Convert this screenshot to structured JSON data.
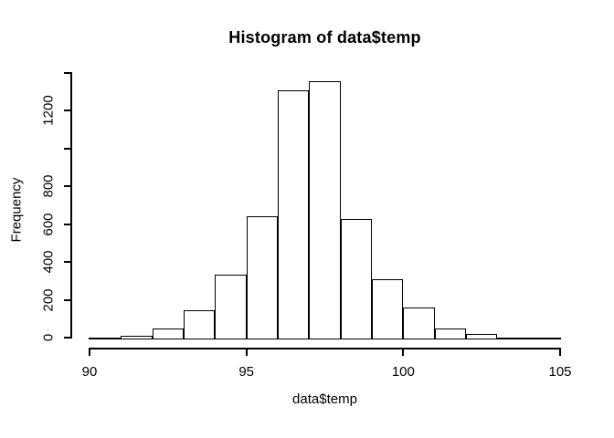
{
  "chart_data": {
    "type": "histogram",
    "title": "Histogram of data$temp",
    "xlabel": "data$temp",
    "ylabel": "Frequency",
    "xlim": [
      90,
      105
    ],
    "ylim": [
      0,
      1400
    ],
    "grid": false,
    "x_ticks": [
      {
        "v": 90,
        "label": "90"
      },
      {
        "v": 95,
        "label": "95"
      },
      {
        "v": 100,
        "label": "100"
      },
      {
        "v": 105,
        "label": "105"
      }
    ],
    "y_ticks": [
      {
        "v": 0,
        "label": "0"
      },
      {
        "v": 200,
        "label": "200"
      },
      {
        "v": 400,
        "label": "400"
      },
      {
        "v": 600,
        "label": "600"
      },
      {
        "v": 800,
        "label": "800"
      },
      {
        "v": 1000,
        "label": ""
      },
      {
        "v": 1200,
        "label": "1200"
      },
      {
        "v": 1400,
        "label": ""
      }
    ],
    "bin_width": 1,
    "bins": [
      {
        "from": 90,
        "to": 91,
        "count": 0
      },
      {
        "from": 91,
        "to": 92,
        "count": 10
      },
      {
        "from": 92,
        "to": 93,
        "count": 48
      },
      {
        "from": 93,
        "to": 94,
        "count": 145
      },
      {
        "from": 94,
        "to": 95,
        "count": 335
      },
      {
        "from": 95,
        "to": 96,
        "count": 640
      },
      {
        "from": 96,
        "to": 97,
        "count": 1310
      },
      {
        "from": 97,
        "to": 98,
        "count": 1355
      },
      {
        "from": 98,
        "to": 99,
        "count": 627
      },
      {
        "from": 99,
        "to": 100,
        "count": 309
      },
      {
        "from": 100,
        "to": 101,
        "count": 161
      },
      {
        "from": 101,
        "to": 102,
        "count": 48
      },
      {
        "from": 102,
        "to": 103,
        "count": 19
      },
      {
        "from": 103,
        "to": 104,
        "count": 0
      },
      {
        "from": 104,
        "to": 105,
        "count": 0
      }
    ],
    "colors": {
      "axis": "#000000",
      "text": "#000000",
      "bar_fill": "#ffffff",
      "bar_border": "#000000",
      "background": "#ffffff"
    }
  }
}
